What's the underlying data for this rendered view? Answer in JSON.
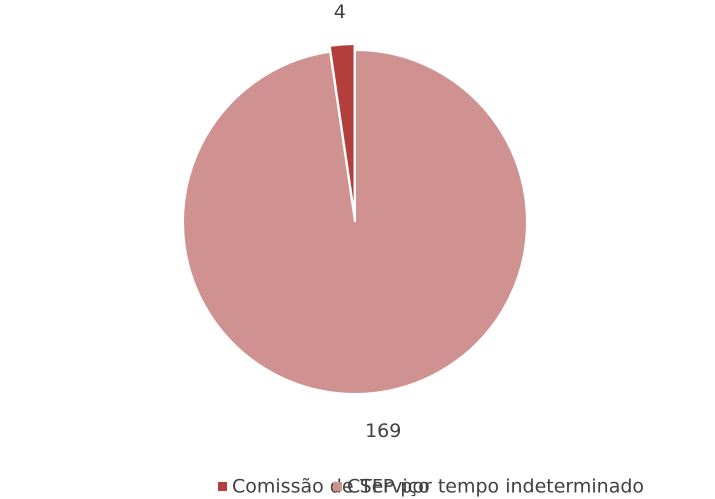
{
  "chart_data": {
    "type": "pie",
    "categories": [
      "Comissão de Serviço",
      "CTFP por tempo indeterminado"
    ],
    "values": [
      4,
      169
    ],
    "colors": [
      "#b33f3d",
      "#d09291"
    ],
    "legend": "bottom"
  }
}
